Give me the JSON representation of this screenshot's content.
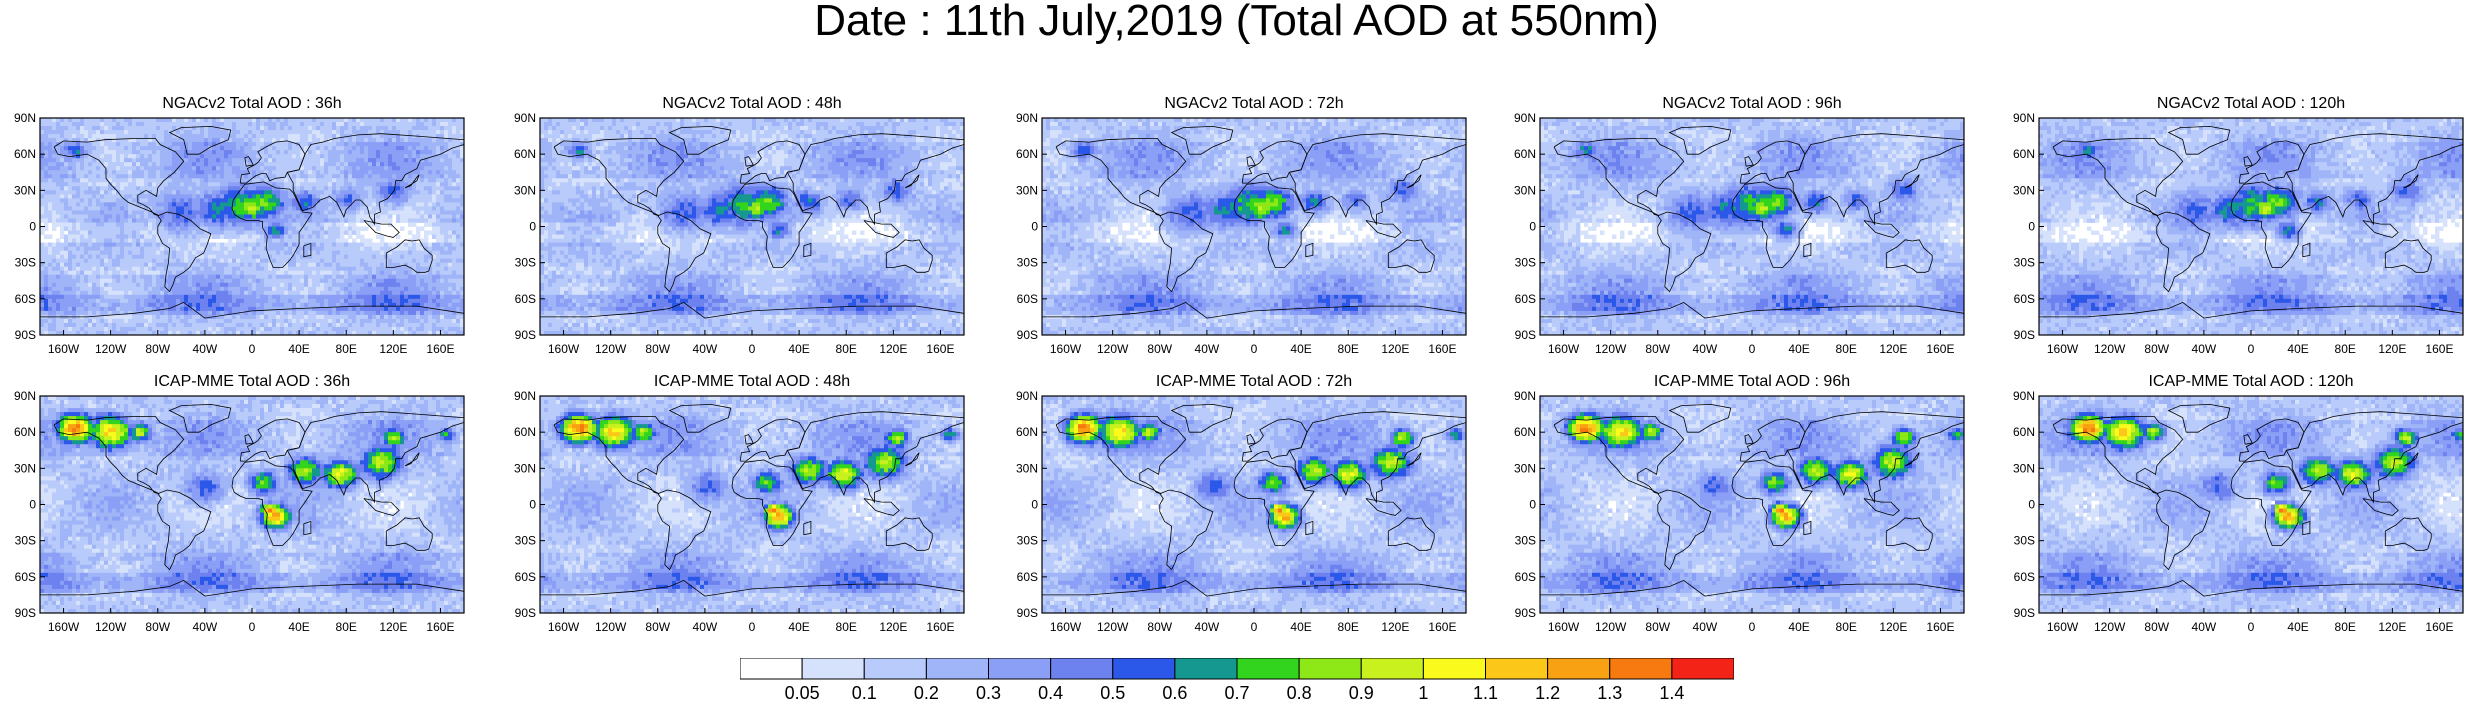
{
  "title": "Date : 11th July,2019 (Total AOD at 550nm)",
  "rows": [
    {
      "model": "NGACv2",
      "panels": [
        {
          "label": "NGACv2 Total AOD : 36h",
          "lead": 36
        },
        {
          "label": "NGACv2 Total AOD : 48h",
          "lead": 48
        },
        {
          "label": "NGACv2 Total AOD : 72h",
          "lead": 72
        },
        {
          "label": "NGACv2 Total AOD : 96h",
          "lead": 96
        },
        {
          "label": "NGACv2 Total AOD : 120h",
          "lead": 120
        }
      ]
    },
    {
      "model": "ICAP-MME",
      "panels": [
        {
          "label": "ICAP-MME Total AOD : 36h",
          "lead": 36
        },
        {
          "label": "ICAP-MME Total AOD : 48h",
          "lead": 48
        },
        {
          "label": "ICAP-MME Total AOD : 72h",
          "lead": 72
        },
        {
          "label": "ICAP-MME Total AOD : 96h",
          "lead": 96
        },
        {
          "label": "ICAP-MME Total AOD : 120h",
          "lead": 120
        }
      ]
    }
  ],
  "lat_ticks": [
    "90N",
    "60N",
    "30N",
    "0",
    "30S",
    "60S",
    "90S"
  ],
  "lon_ticks": [
    "160W",
    "120W",
    "80W",
    "40W",
    "0",
    "40E",
    "80E",
    "120E",
    "160E"
  ],
  "colorbar": {
    "labels": [
      "0.05",
      "0.1",
      "0.2",
      "0.3",
      "0.4",
      "0.5",
      "0.6",
      "0.7",
      "0.8",
      "0.9",
      "1",
      "1.1",
      "1.2",
      "1.3",
      "1.4"
    ],
    "colors": [
      "#ffffff",
      "#d6e2fb",
      "#b9cbfa",
      "#9fb5f7",
      "#8a9ff5",
      "#6d81ef",
      "#2b58e8",
      "#159890",
      "#33d41e",
      "#8ee817",
      "#c8f11e",
      "#fafa1c",
      "#fbc81a",
      "#f8a112",
      "#f77a10",
      "#f32417"
    ]
  }
}
